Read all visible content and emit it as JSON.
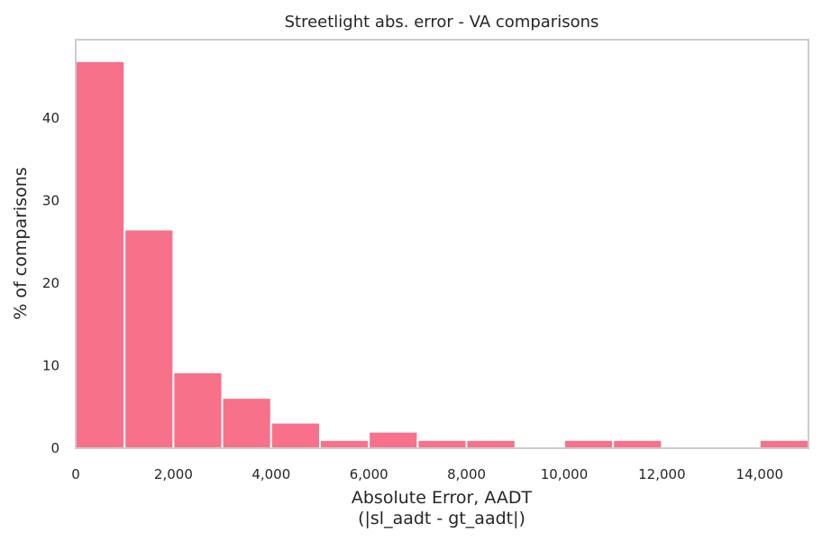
{
  "chart_data": {
    "type": "bar",
    "title": "Streetlight abs. error - VA comparisons",
    "xlabel_line1": "Absolute Error, AADT",
    "xlabel_line2": "(|sl_aadt - gt_aadt|)",
    "ylabel": "% of comparisons",
    "bar_color": "#f7718b",
    "frame_color": "#cccccc",
    "grid": false,
    "xlim": [
      0,
      15000
    ],
    "ylim": [
      0,
      49.5
    ],
    "x_ticks": [
      0,
      2000,
      4000,
      6000,
      8000,
      10000,
      12000,
      14000
    ],
    "x_tick_labels": [
      "0",
      "2,000",
      "4,000",
      "6,000",
      "8,000",
      "10,000",
      "12,000",
      "14,000"
    ],
    "y_ticks": [
      0,
      10,
      20,
      30,
      40
    ],
    "y_tick_labels": [
      "0",
      "10",
      "20",
      "30",
      "40"
    ],
    "bins": [
      {
        "start": 0,
        "end": 1000,
        "value": 46.9
      },
      {
        "start": 1000,
        "end": 2000,
        "value": 26.5
      },
      {
        "start": 2000,
        "end": 3000,
        "value": 9.2
      },
      {
        "start": 3000,
        "end": 4000,
        "value": 6.1
      },
      {
        "start": 4000,
        "end": 5000,
        "value": 3.1
      },
      {
        "start": 5000,
        "end": 6000,
        "value": 1.0
      },
      {
        "start": 6000,
        "end": 7000,
        "value": 2.0
      },
      {
        "start": 7000,
        "end": 8000,
        "value": 1.0
      },
      {
        "start": 8000,
        "end": 9000,
        "value": 1.0
      },
      {
        "start": 9000,
        "end": 10000,
        "value": 0
      },
      {
        "start": 10000,
        "end": 11000,
        "value": 1.0
      },
      {
        "start": 11000,
        "end": 12000,
        "value": 1.0
      },
      {
        "start": 12000,
        "end": 13000,
        "value": 0
      },
      {
        "start": 13000,
        "end": 14000,
        "value": 0
      },
      {
        "start": 14000,
        "end": 15000,
        "value": 1.0
      }
    ]
  }
}
